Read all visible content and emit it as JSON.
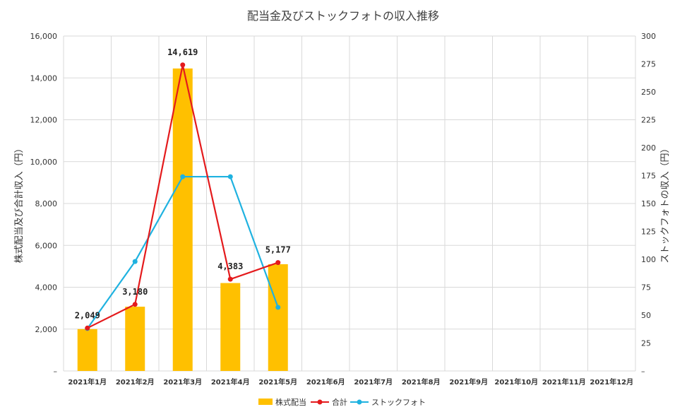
{
  "chart_data": {
    "type": "bar",
    "title": "配当金及びストックフォトの収入推移",
    "categories": [
      "2021年1月",
      "2021年2月",
      "2021年3月",
      "2021年4月",
      "2021年5月",
      "2021年6月",
      "2021年7月",
      "2021年8月",
      "2021年9月",
      "2021年10月",
      "2021年11月",
      "2021年12月"
    ],
    "ylabel_left": "株式配当及び合計収入（円）",
    "ylabel_right": "ストックフォトの収入（円）",
    "ylim_left": [
      0,
      16000
    ],
    "ylim_right": [
      0,
      300
    ],
    "yticks_left": [
      "–",
      "2,000",
      "4,000",
      "6,000",
      "8,000",
      "10,000",
      "12,000",
      "14,000",
      "16,000"
    ],
    "yticks_right": [
      "–",
      "25",
      "50",
      "75",
      "100",
      "125",
      "150",
      "175",
      "200",
      "225",
      "250",
      "275",
      "300"
    ],
    "grid": true,
    "legend_position": "bottom",
    "series": [
      {
        "name": "株式配当",
        "type": "bar",
        "axis": "left",
        "color": "#FFC000",
        "values": [
          2000,
          3070,
          14450,
          4200,
          5100,
          null,
          null,
          null,
          null,
          null,
          null,
          null
        ]
      },
      {
        "name": "合計",
        "type": "line",
        "axis": "left",
        "color": "#E41A1C",
        "values": [
          2049,
          3180,
          14619,
          4383,
          5177,
          null,
          null,
          null,
          null,
          null,
          null,
          null
        ],
        "labels": [
          "2,049",
          "3,180",
          "14,619",
          "4,383",
          "5,177"
        ]
      },
      {
        "name": "ストックフォト",
        "type": "line",
        "axis": "right",
        "color": "#1FB2E0",
        "values": [
          38,
          98,
          174,
          174,
          57,
          null,
          null,
          null,
          null,
          null,
          null,
          null
        ]
      }
    ]
  }
}
